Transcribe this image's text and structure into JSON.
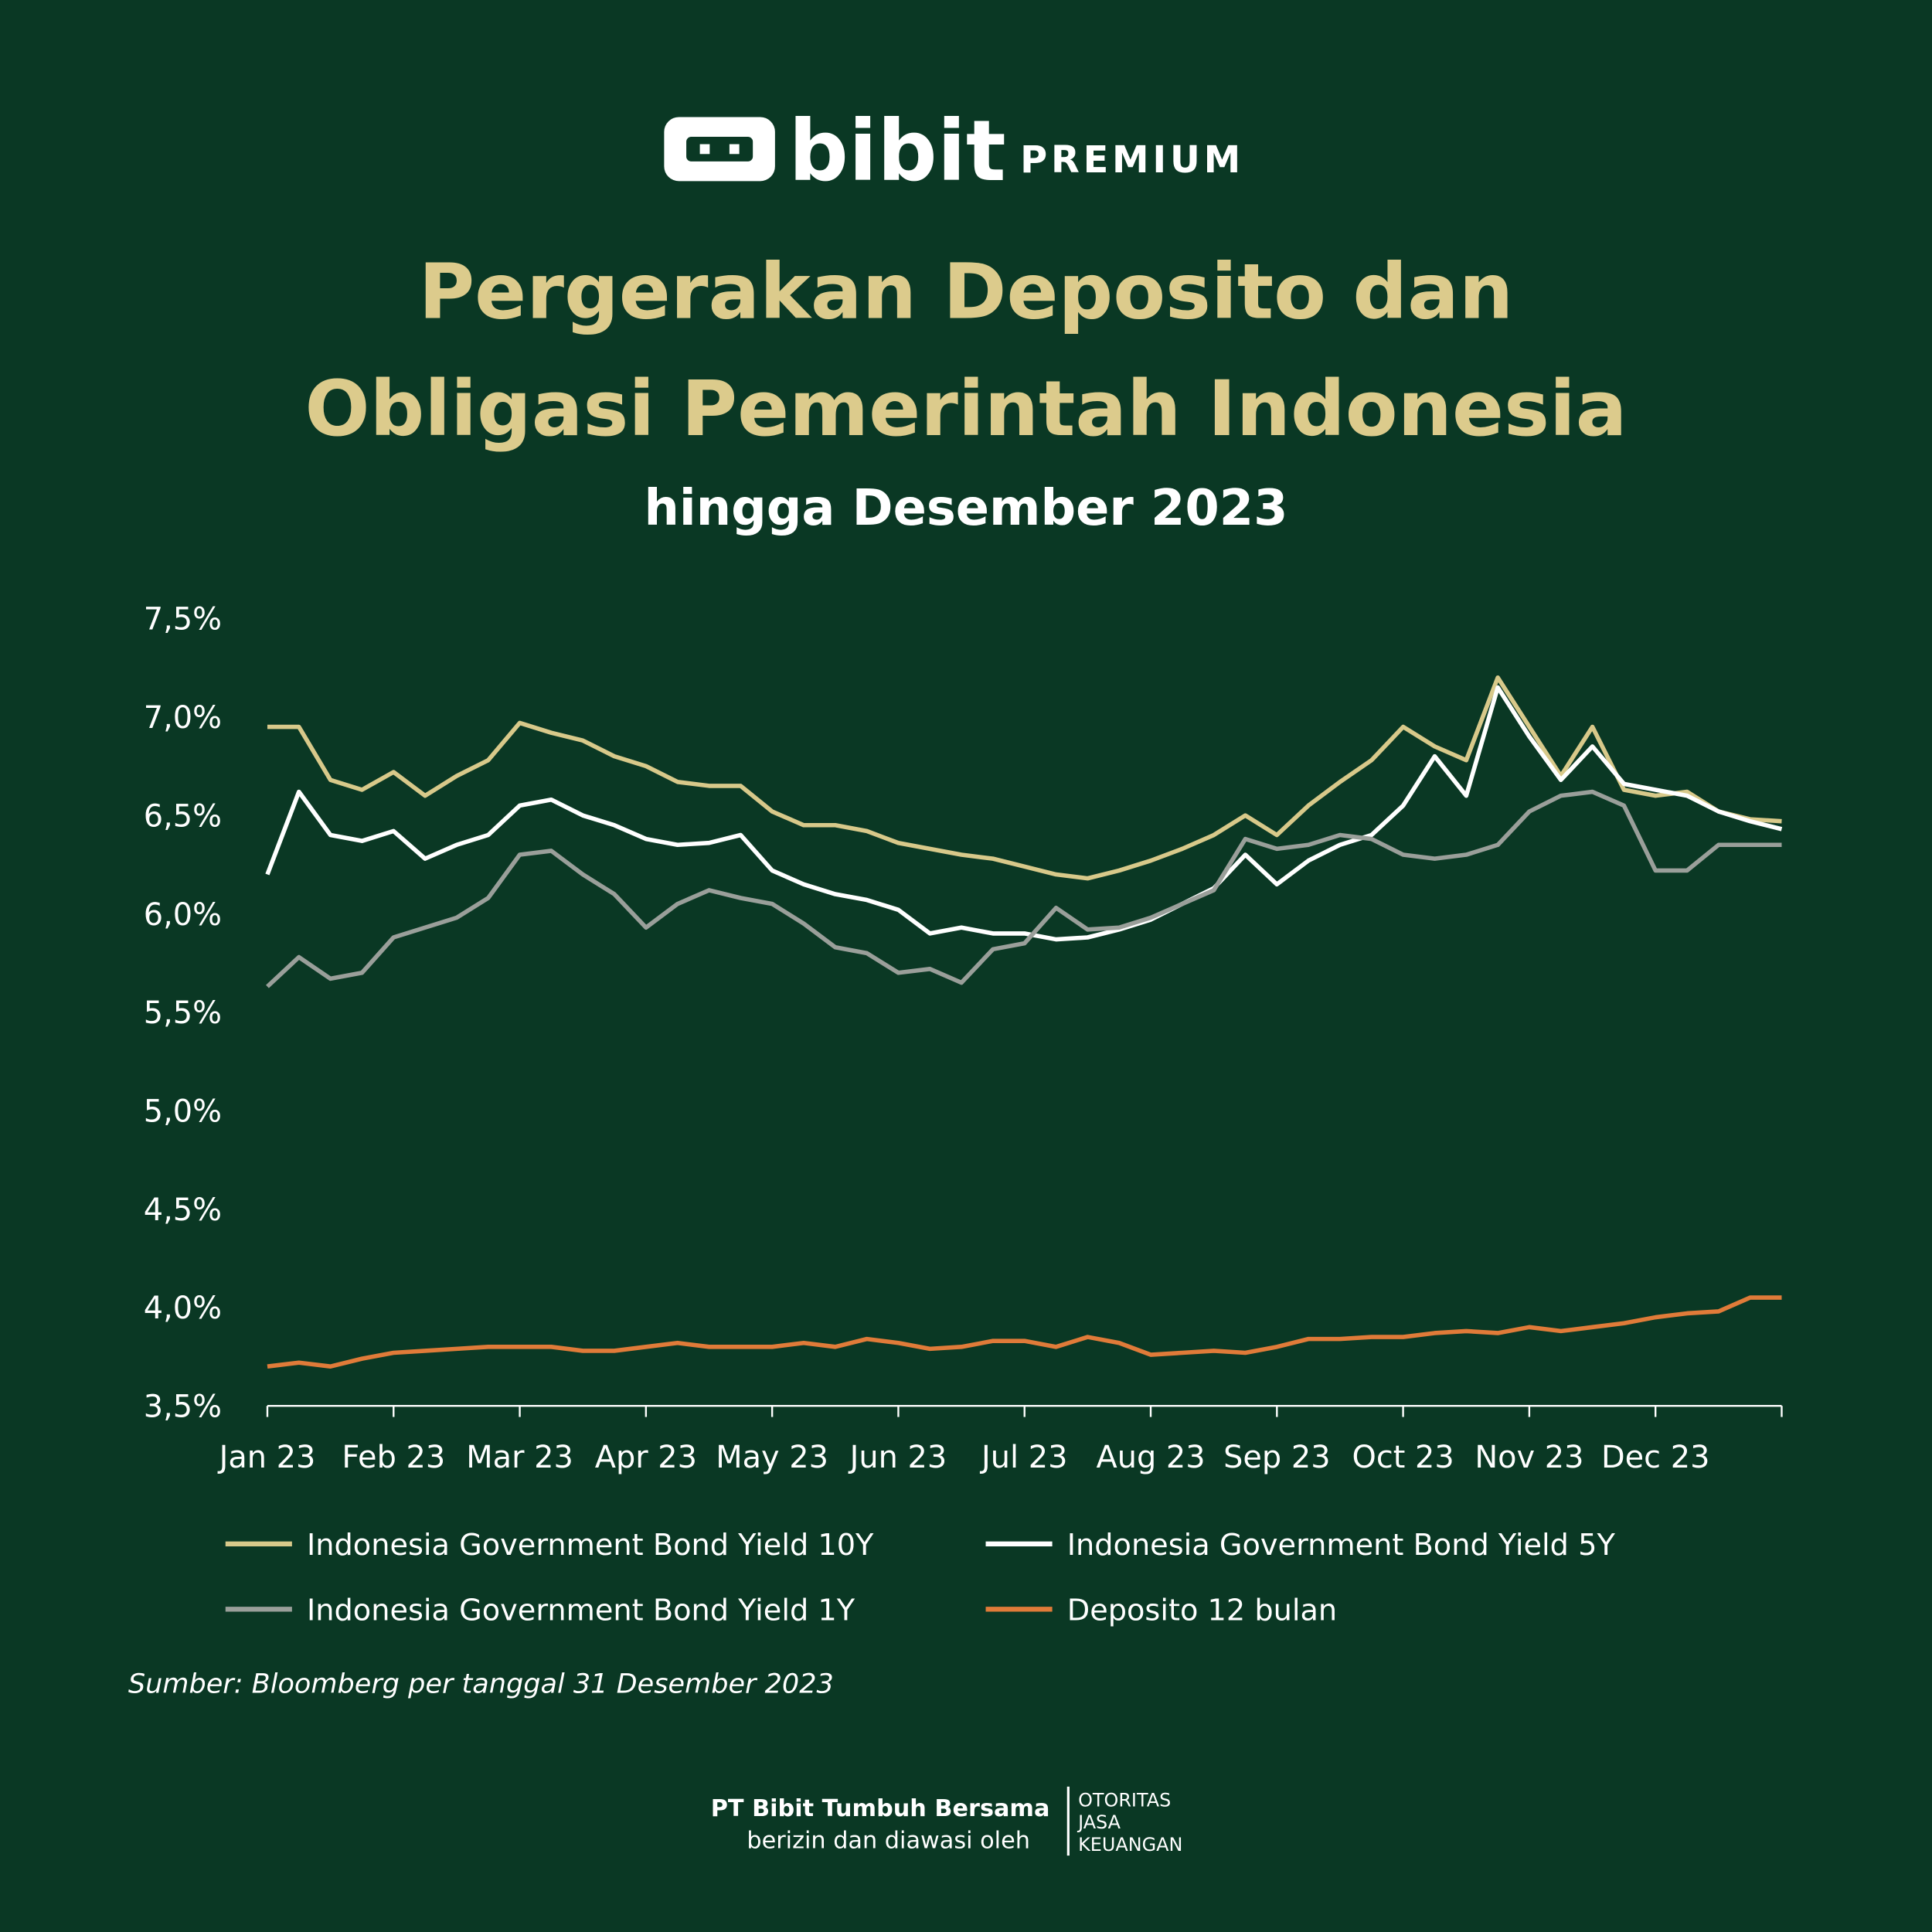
{
  "header": {
    "brand": "bibit",
    "tier": "PREMIUM"
  },
  "chart_data": {
    "type": "line",
    "title": [
      "Pergerakan Deposito dan",
      "Obligasi Pemerintah Indonesia"
    ],
    "subtitle": "hingga Desember 2023",
    "x": [
      0,
      0.25,
      0.5,
      0.75,
      1,
      1.25,
      1.5,
      1.75,
      2,
      2.25,
      2.5,
      2.75,
      3,
      3.25,
      3.5,
      3.75,
      4,
      4.25,
      4.5,
      4.75,
      5,
      5.25,
      5.5,
      5.75,
      6,
      6.25,
      6.5,
      6.75,
      7,
      7.25,
      7.5,
      7.75,
      8,
      8.25,
      8.5,
      8.75,
      9,
      9.25,
      9.5,
      9.75,
      10,
      10.25,
      10.5,
      10.75,
      11,
      11.25,
      11.5,
      11.75,
      12
    ],
    "xlim": [
      0,
      12
    ],
    "xticks": [
      {
        "value": 0,
        "label": "Jan 23"
      },
      {
        "value": 1,
        "label": "Feb 23"
      },
      {
        "value": 2,
        "label": "Mar 23"
      },
      {
        "value": 3,
        "label": "Apr 23"
      },
      {
        "value": 4,
        "label": "May 23"
      },
      {
        "value": 5,
        "label": "Jun 23"
      },
      {
        "value": 6,
        "label": "Jul 23"
      },
      {
        "value": 7,
        "label": "Aug 23"
      },
      {
        "value": 8,
        "label": "Sep 23"
      },
      {
        "value": 9,
        "label": "Oct 23"
      },
      {
        "value": 10,
        "label": "Nov 23"
      },
      {
        "value": 11,
        "label": "Dec 23"
      }
    ],
    "ylim": [
      3.5,
      7.5
    ],
    "yticks": [
      {
        "value": 3.5,
        "label": "3,5%"
      },
      {
        "value": 4,
        "label": "4,0%"
      },
      {
        "value": 4.5,
        "label": "4,5%"
      },
      {
        "value": 5,
        "label": "5,0%"
      },
      {
        "value": 5.5,
        "label": "5,5%"
      },
      {
        "value": 6,
        "label": "6,0%"
      },
      {
        "value": 6.5,
        "label": "6,5%"
      },
      {
        "value": 7,
        "label": "7,0%"
      },
      {
        "value": 7.5,
        "label": "7,5%"
      }
    ],
    "grid": false,
    "series": [
      {
        "name": "Indonesia Government Bond Yield 10Y",
        "color": "#d8c98a",
        "values": [
          6.95,
          6.95,
          6.68,
          6.63,
          6.72,
          6.6,
          6.7,
          6.78,
          6.97,
          6.92,
          6.88,
          6.8,
          6.75,
          6.67,
          6.65,
          6.65,
          6.52,
          6.45,
          6.45,
          6.42,
          6.36,
          6.33,
          6.3,
          6.28,
          6.24,
          6.2,
          6.18,
          6.22,
          6.27,
          6.33,
          6.4,
          6.5,
          6.4,
          6.55,
          6.67,
          6.78,
          6.95,
          6.85,
          6.78,
          7.2,
          6.95,
          6.7,
          6.95,
          6.63,
          6.6,
          6.62,
          6.52,
          6.48,
          6.47
        ]
      },
      {
        "name": "Indonesia Government Bond Yield 5Y",
        "color": "#ffffff",
        "values": [
          6.2,
          6.62,
          6.4,
          6.37,
          6.42,
          6.28,
          6.35,
          6.4,
          6.55,
          6.58,
          6.5,
          6.45,
          6.38,
          6.35,
          6.36,
          6.4,
          6.22,
          6.15,
          6.1,
          6.07,
          6.02,
          5.9,
          5.93,
          5.9,
          5.9,
          5.87,
          5.88,
          5.92,
          5.97,
          6.05,
          6.13,
          6.3,
          6.15,
          6.27,
          6.35,
          6.4,
          6.55,
          6.8,
          6.6,
          7.15,
          6.9,
          6.68,
          6.85,
          6.66,
          6.63,
          6.6,
          6.52,
          6.47,
          6.43
        ]
      },
      {
        "name": "Indonesia Government Bond Yield 1Y",
        "color": "#9a9f9a",
        "values": [
          5.63,
          5.78,
          5.67,
          5.7,
          5.88,
          5.93,
          5.98,
          6.08,
          6.3,
          6.32,
          6.2,
          6.1,
          5.93,
          6.05,
          6.12,
          6.08,
          6.05,
          5.95,
          5.83,
          5.8,
          5.7,
          5.72,
          5.65,
          5.82,
          5.85,
          6.03,
          5.92,
          5.93,
          5.98,
          6.05,
          6.12,
          6.38,
          6.33,
          6.35,
          6.4,
          6.38,
          6.3,
          6.28,
          6.3,
          6.35,
          6.52,
          6.6,
          6.62,
          6.55,
          6.22,
          6.22,
          6.35,
          6.35,
          6.35
        ]
      },
      {
        "name": "Deposito 12 bulan",
        "color": "#e07b39",
        "values": [
          3.7,
          3.72,
          3.7,
          3.74,
          3.77,
          3.78,
          3.79,
          3.8,
          3.8,
          3.8,
          3.78,
          3.78,
          3.8,
          3.82,
          3.8,
          3.8,
          3.8,
          3.82,
          3.8,
          3.84,
          3.82,
          3.79,
          3.8,
          3.83,
          3.83,
          3.8,
          3.85,
          3.82,
          3.76,
          3.77,
          3.78,
          3.77,
          3.8,
          3.84,
          3.84,
          3.85,
          3.85,
          3.87,
          3.88,
          3.87,
          3.9,
          3.88,
          3.9,
          3.92,
          3.95,
          3.97,
          3.98,
          4.05,
          4.05
        ]
      }
    ],
    "source": "Sumber: Bloomberg per tanggal 31 Desember 2023"
  },
  "footer": {
    "company": "PT Bibit Tumbuh Bersama",
    "note": "berizin dan diawasi oleh",
    "regulator": [
      "OTORITAS",
      "JASA",
      "KEUANGAN"
    ]
  }
}
